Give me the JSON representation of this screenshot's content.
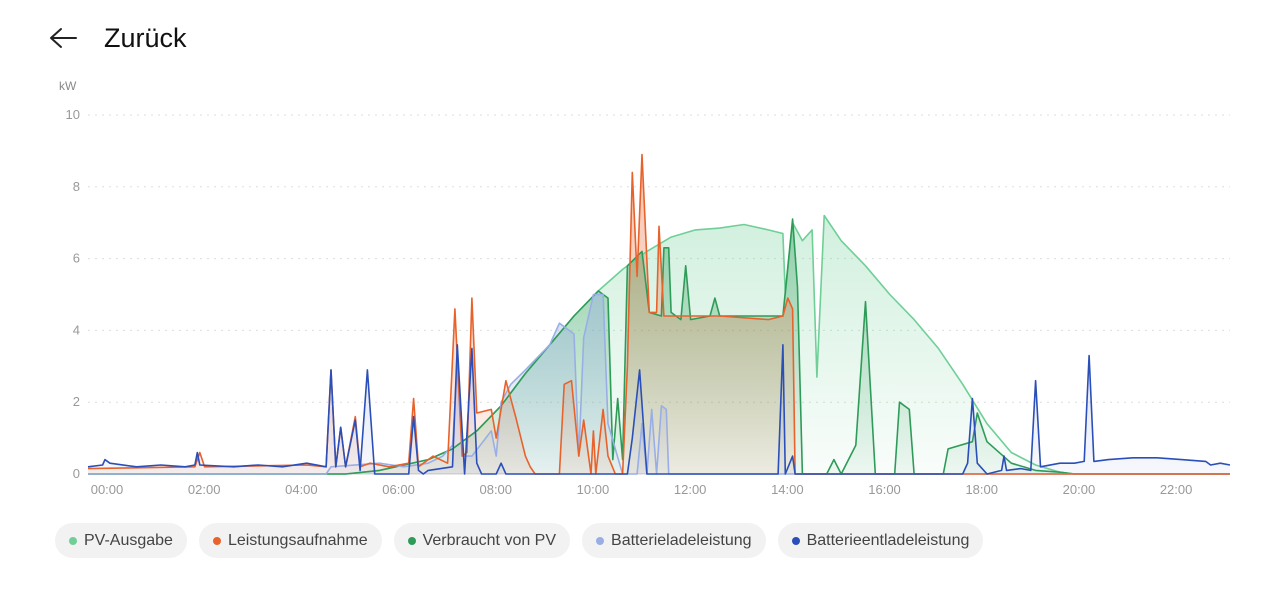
{
  "header": {
    "back_label": "Zurück"
  },
  "chart_data": {
    "type": "line",
    "ylabel": "kW",
    "ylim": [
      0,
      10
    ],
    "yticks": [
      "0",
      "2",
      "4",
      "6",
      "8",
      "10"
    ],
    "xlim": [
      0,
      23.5
    ],
    "xticks": [
      "00:00",
      "02:00",
      "04:00",
      "06:00",
      "08:00",
      "10:00",
      "12:00",
      "14:00",
      "16:00",
      "18:00",
      "20:00",
      "22:00"
    ],
    "grid": true,
    "legend_position": "bottom",
    "series": [
      {
        "name": "PV-Ausgabe",
        "color": "#6fcf97",
        "points": [
          [
            0,
            0
          ],
          [
            5.3,
            0
          ],
          [
            6.0,
            0.1
          ],
          [
            7.0,
            0.4
          ],
          [
            7.5,
            0.7
          ],
          [
            8.0,
            1.2
          ],
          [
            8.5,
            1.9
          ],
          [
            9.0,
            2.8
          ],
          [
            9.5,
            3.6
          ],
          [
            10.0,
            4.4
          ],
          [
            10.5,
            5.1
          ],
          [
            11.0,
            5.7
          ],
          [
            11.5,
            6.2
          ],
          [
            12.0,
            6.6
          ],
          [
            12.5,
            6.8
          ],
          [
            13.0,
            6.85
          ],
          [
            13.5,
            6.95
          ],
          [
            14.0,
            6.8
          ],
          [
            14.3,
            6.7
          ],
          [
            14.35,
            5.0
          ],
          [
            14.5,
            7.0
          ],
          [
            14.7,
            6.5
          ],
          [
            14.9,
            6.8
          ],
          [
            15.0,
            2.7
          ],
          [
            15.15,
            7.2
          ],
          [
            15.5,
            6.5
          ],
          [
            16.0,
            5.8
          ],
          [
            16.5,
            5.0
          ],
          [
            17.0,
            4.3
          ],
          [
            17.5,
            3.5
          ],
          [
            18.0,
            2.5
          ],
          [
            18.5,
            1.4
          ],
          [
            19.0,
            0.6
          ],
          [
            19.5,
            0.25
          ],
          [
            20.0,
            0.05
          ],
          [
            20.3,
            0
          ],
          [
            23.5,
            0
          ]
        ]
      },
      {
        "name": "Leistungsaufnahme",
        "color": "#e8622c",
        "points": [
          [
            0,
            0.15
          ],
          [
            2.2,
            0.2
          ],
          [
            2.3,
            0.6
          ],
          [
            2.4,
            0.2
          ],
          [
            4.5,
            0.25
          ],
          [
            4.9,
            0.2
          ],
          [
            5.0,
            2.9
          ],
          [
            5.1,
            0.2
          ],
          [
            5.2,
            1.3
          ],
          [
            5.3,
            0.2
          ],
          [
            5.5,
            1.6
          ],
          [
            5.6,
            0.2
          ],
          [
            5.8,
            0.3
          ],
          [
            6.2,
            0.2
          ],
          [
            6.6,
            0.3
          ],
          [
            6.7,
            2.1
          ],
          [
            6.8,
            0.2
          ],
          [
            7.1,
            0.5
          ],
          [
            7.4,
            0.3
          ],
          [
            7.55,
            4.6
          ],
          [
            7.7,
            0.5
          ],
          [
            7.8,
            0.6
          ],
          [
            7.9,
            4.9
          ],
          [
            8.0,
            1.7
          ],
          [
            8.3,
            1.8
          ],
          [
            8.4,
            1.0
          ],
          [
            8.6,
            2.6
          ],
          [
            8.8,
            1.6
          ],
          [
            9.0,
            0.5
          ],
          [
            9.1,
            0.2
          ],
          [
            9.2,
            0
          ],
          [
            9.7,
            0
          ],
          [
            9.8,
            2.5
          ],
          [
            9.95,
            2.6
          ],
          [
            10.1,
            0.5
          ],
          [
            10.2,
            1.5
          ],
          [
            10.35,
            0
          ],
          [
            10.4,
            1.2
          ],
          [
            10.45,
            0
          ],
          [
            10.6,
            1.8
          ],
          [
            10.7,
            0.5
          ],
          [
            10.85,
            0
          ],
          [
            11.0,
            0
          ],
          [
            11.1,
            3.0
          ],
          [
            11.2,
            8.4
          ],
          [
            11.3,
            5.5
          ],
          [
            11.4,
            8.9
          ],
          [
            11.55,
            4.5
          ],
          [
            11.7,
            4.5
          ],
          [
            11.75,
            6.9
          ],
          [
            11.85,
            4.4
          ],
          [
            13.0,
            4.4
          ],
          [
            14.0,
            4.3
          ],
          [
            14.3,
            4.4
          ],
          [
            14.4,
            4.9
          ],
          [
            14.5,
            4.6
          ],
          [
            14.55,
            0
          ],
          [
            23.5,
            0
          ]
        ]
      },
      {
        "name": "Verbraucht von PV",
        "color": "#2e9b59",
        "points": [
          [
            0,
            0
          ],
          [
            5.3,
            0
          ],
          [
            6.0,
            0.1
          ],
          [
            7.0,
            0.4
          ],
          [
            7.5,
            0.7
          ],
          [
            8.0,
            1.2
          ],
          [
            8.5,
            1.9
          ],
          [
            9.0,
            2.8
          ],
          [
            9.5,
            3.6
          ],
          [
            10.0,
            4.4
          ],
          [
            10.5,
            5.1
          ],
          [
            10.7,
            4.9
          ],
          [
            10.8,
            0.4
          ],
          [
            10.9,
            2.1
          ],
          [
            11.0,
            0.4
          ],
          [
            11.1,
            5.8
          ],
          [
            11.4,
            6.2
          ],
          [
            11.55,
            4.5
          ],
          [
            11.8,
            4.4
          ],
          [
            11.85,
            6.3
          ],
          [
            11.95,
            6.3
          ],
          [
            12.0,
            4.5
          ],
          [
            12.2,
            4.3
          ],
          [
            12.3,
            5.8
          ],
          [
            12.4,
            4.3
          ],
          [
            12.8,
            4.4
          ],
          [
            12.9,
            4.9
          ],
          [
            13.0,
            4.4
          ],
          [
            14.3,
            4.4
          ],
          [
            14.5,
            7.1
          ],
          [
            14.6,
            5.2
          ],
          [
            14.7,
            0
          ],
          [
            15.2,
            0
          ],
          [
            15.35,
            0.4
          ],
          [
            15.5,
            0
          ],
          [
            15.8,
            0.8
          ],
          [
            16.0,
            4.8
          ],
          [
            16.2,
            0
          ],
          [
            16.6,
            0
          ],
          [
            16.7,
            2.0
          ],
          [
            16.9,
            1.8
          ],
          [
            17.0,
            0
          ],
          [
            17.6,
            0
          ],
          [
            17.7,
            0.7
          ],
          [
            18.2,
            0.9
          ],
          [
            18.3,
            1.7
          ],
          [
            18.5,
            0.9
          ],
          [
            19.0,
            0.3
          ],
          [
            19.5,
            0.1
          ],
          [
            20.0,
            0.05
          ],
          [
            20.3,
            0
          ],
          [
            23.5,
            0
          ]
        ]
      },
      {
        "name": "Batterieladeleistung",
        "color": "#9aaee6",
        "points": [
          [
            0,
            0
          ],
          [
            4.9,
            0
          ],
          [
            5.0,
            0.2
          ],
          [
            6.0,
            0.3
          ],
          [
            6.5,
            0.2
          ],
          [
            7.0,
            0.3
          ],
          [
            7.3,
            0.5
          ],
          [
            7.5,
            0.8
          ],
          [
            7.6,
            3.0
          ],
          [
            7.7,
            0.5
          ],
          [
            7.9,
            0.5
          ],
          [
            8.3,
            1.2
          ],
          [
            8.4,
            0.5
          ],
          [
            8.5,
            2.0
          ],
          [
            8.7,
            2.5
          ],
          [
            9.0,
            2.9
          ],
          [
            9.5,
            3.6
          ],
          [
            9.7,
            4.2
          ],
          [
            10.0,
            3.9
          ],
          [
            10.1,
            0.5
          ],
          [
            10.2,
            3.8
          ],
          [
            10.4,
            5.0
          ],
          [
            10.6,
            5.0
          ],
          [
            10.7,
            1.4
          ],
          [
            11.0,
            0
          ],
          [
            11.3,
            0
          ],
          [
            11.4,
            1.4
          ],
          [
            11.5,
            0
          ],
          [
            11.6,
            1.8
          ],
          [
            11.7,
            0
          ],
          [
            11.8,
            1.9
          ],
          [
            11.9,
            1.8
          ],
          [
            11.95,
            0
          ],
          [
            23.5,
            0
          ]
        ]
      },
      {
        "name": "Batterieentladeleistung",
        "color": "#2b4fb8",
        "points": [
          [
            0,
            0.2
          ],
          [
            0.3,
            0.25
          ],
          [
            0.35,
            0.4
          ],
          [
            0.45,
            0.3
          ],
          [
            1.0,
            0.2
          ],
          [
            1.5,
            0.25
          ],
          [
            2.0,
            0.2
          ],
          [
            2.2,
            0.25
          ],
          [
            2.25,
            0.6
          ],
          [
            2.3,
            0.25
          ],
          [
            3.0,
            0.2
          ],
          [
            3.5,
            0.25
          ],
          [
            4.0,
            0.2
          ],
          [
            4.5,
            0.3
          ],
          [
            4.9,
            0.2
          ],
          [
            5.0,
            2.9
          ],
          [
            5.1,
            0.2
          ],
          [
            5.2,
            1.3
          ],
          [
            5.3,
            0.2
          ],
          [
            5.5,
            1.5
          ],
          [
            5.6,
            0.1
          ],
          [
            5.75,
            2.9
          ],
          [
            5.9,
            0
          ],
          [
            6.6,
            0
          ],
          [
            6.7,
            1.6
          ],
          [
            6.8,
            0.1
          ],
          [
            6.9,
            0
          ],
          [
            7.0,
            0.1
          ],
          [
            7.5,
            0.2
          ],
          [
            7.6,
            3.6
          ],
          [
            7.75,
            0
          ],
          [
            7.9,
            3.5
          ],
          [
            8.0,
            0.3
          ],
          [
            8.1,
            0
          ],
          [
            8.4,
            0
          ],
          [
            8.5,
            0.3
          ],
          [
            8.6,
            0
          ],
          [
            11.1,
            0
          ],
          [
            11.2,
            1.0
          ],
          [
            11.35,
            2.9
          ],
          [
            11.5,
            0
          ],
          [
            14.2,
            0
          ],
          [
            14.3,
            3.6
          ],
          [
            14.35,
            0
          ],
          [
            14.5,
            0.5
          ],
          [
            14.55,
            0
          ],
          [
            18.0,
            0
          ],
          [
            18.1,
            0.3
          ],
          [
            18.2,
            2.1
          ],
          [
            18.3,
            0.3
          ],
          [
            18.5,
            0
          ],
          [
            18.8,
            0.1
          ],
          [
            18.85,
            0.5
          ],
          [
            18.9,
            0.1
          ],
          [
            19.2,
            0.15
          ],
          [
            19.4,
            0.1
          ],
          [
            19.5,
            2.6
          ],
          [
            19.6,
            0.2
          ],
          [
            20.0,
            0.3
          ],
          [
            20.3,
            0.3
          ],
          [
            20.5,
            0.35
          ],
          [
            20.6,
            3.3
          ],
          [
            20.7,
            0.35
          ],
          [
            21.0,
            0.4
          ],
          [
            21.5,
            0.45
          ],
          [
            22.0,
            0.45
          ],
          [
            22.5,
            0.4
          ],
          [
            23.0,
            0.35
          ],
          [
            23.1,
            0.25
          ],
          [
            23.3,
            0.3
          ],
          [
            23.5,
            0.25
          ]
        ]
      }
    ]
  }
}
